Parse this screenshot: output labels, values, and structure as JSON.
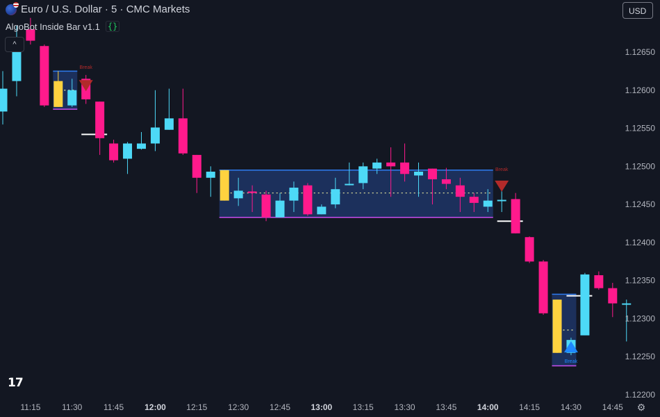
{
  "header": {
    "title": "Euro / U.S. Dollar · 5 · CMC Markets",
    "indicator_name": "AlgoBot Inside Bar v1.1",
    "currency": "USD",
    "logo_text": "17"
  },
  "colors": {
    "background": "#131722",
    "bull": "#4dd9f7",
    "bear": "#ff1a8c",
    "mother": "#ffd23f",
    "box_fill": "#1e3566",
    "box_top": "#2e7bf0",
    "box_bottom": "#c84ef0",
    "break_down": "#b22a2a",
    "break_up": "#1e88ff",
    "level_line": "#ffffff"
  },
  "chart_data": {
    "type": "candlestick",
    "title": "Euro / U.S. Dollar · 5 · CMC Markets",
    "ylim": [
      1.12205,
      1.12705
    ],
    "y_ticks": [
      "1.12650",
      "1.12600",
      "1.12550",
      "1.12500",
      "1.12450",
      "1.12400",
      "1.12350",
      "1.12300",
      "1.12250",
      "1.12200"
    ],
    "x_ticks": [
      {
        "label": "11:15",
        "bar": 2,
        "bold": false
      },
      {
        "label": "11:30",
        "bar": 5,
        "bold": false
      },
      {
        "label": "11:45",
        "bar": 8,
        "bold": false
      },
      {
        "label": "12:00",
        "bar": 11,
        "bold": true
      },
      {
        "label": "12:15",
        "bar": 14,
        "bold": false
      },
      {
        "label": "12:30",
        "bar": 17,
        "bold": false
      },
      {
        "label": "12:45",
        "bar": 20,
        "bold": false
      },
      {
        "label": "13:00",
        "bar": 23,
        "bold": true
      },
      {
        "label": "13:15",
        "bar": 26,
        "bold": false
      },
      {
        "label": "13:30",
        "bar": 29,
        "bold": false
      },
      {
        "label": "13:45",
        "bar": 32,
        "bold": false
      },
      {
        "label": "14:00",
        "bar": 35,
        "bold": true
      },
      {
        "label": "14:15",
        "bar": 38,
        "bold": false
      },
      {
        "label": "14:30",
        "bar": 41,
        "bold": false
      },
      {
        "label": "14:45",
        "bar": 44,
        "bold": false
      }
    ],
    "candles": [
      {
        "o": 1.12572,
        "h": 1.12625,
        "l": 1.12555,
        "c": 1.12602,
        "k": "bull"
      },
      {
        "o": 1.12612,
        "h": 1.12685,
        "l": 1.12592,
        "c": 1.12665,
        "k": "bull"
      },
      {
        "o": 1.1268,
        "h": 1.12695,
        "l": 1.1266,
        "c": 1.12665,
        "k": "bear"
      },
      {
        "o": 1.12658,
        "h": 1.1266,
        "l": 1.12578,
        "c": 1.1258,
        "k": "bear"
      },
      {
        "o": 1.12578,
        "h": 1.12625,
        "l": 1.12578,
        "c": 1.12612,
        "k": "mother"
      },
      {
        "o": 1.1258,
        "h": 1.12615,
        "l": 1.12578,
        "c": 1.126,
        "k": "bull"
      },
      {
        "o": 1.12615,
        "h": 1.1262,
        "l": 1.12582,
        "c": 1.12588,
        "k": "bear"
      },
      {
        "o": 1.12585,
        "h": 1.12585,
        "l": 1.12515,
        "c": 1.12537,
        "k": "bear"
      },
      {
        "o": 1.1253,
        "h": 1.12535,
        "l": 1.12505,
        "c": 1.12508,
        "k": "bear"
      },
      {
        "o": 1.1251,
        "h": 1.12532,
        "l": 1.1249,
        "c": 1.1253,
        "k": "bull"
      },
      {
        "o": 1.12523,
        "h": 1.12545,
        "l": 1.12522,
        "c": 1.1253,
        "k": "bull"
      },
      {
        "o": 1.1253,
        "h": 1.126,
        "l": 1.1252,
        "c": 1.12551,
        "k": "bull"
      },
      {
        "o": 1.12548,
        "h": 1.12602,
        "l": 1.12548,
        "c": 1.12563,
        "k": "bull"
      },
      {
        "o": 1.12563,
        "h": 1.12602,
        "l": 1.12515,
        "c": 1.12517,
        "k": "bear"
      },
      {
        "o": 1.12515,
        "h": 1.12515,
        "l": 1.12465,
        "c": 1.12485,
        "k": "bear"
      },
      {
        "o": 1.12485,
        "h": 1.125,
        "l": 1.1246,
        "c": 1.12493,
        "k": "bull"
      },
      {
        "o": 1.12495,
        "h": 1.12495,
        "l": 1.12455,
        "c": 1.12455,
        "k": "mother"
      },
      {
        "o": 1.12458,
        "h": 1.12485,
        "l": 1.12448,
        "c": 1.12468,
        "k": "bull"
      },
      {
        "o": 1.12467,
        "h": 1.12475,
        "l": 1.1244,
        "c": 1.12465,
        "k": "bear"
      },
      {
        "o": 1.12463,
        "h": 1.12468,
        "l": 1.12428,
        "c": 1.12433,
        "k": "bear"
      },
      {
        "o": 1.12433,
        "h": 1.12465,
        "l": 1.12433,
        "c": 1.12455,
        "k": "bull"
      },
      {
        "o": 1.12455,
        "h": 1.1248,
        "l": 1.1244,
        "c": 1.12472,
        "k": "bull"
      },
      {
        "o": 1.12475,
        "h": 1.12478,
        "l": 1.12435,
        "c": 1.12437,
        "k": "bear"
      },
      {
        "o": 1.12437,
        "h": 1.1245,
        "l": 1.12437,
        "c": 1.12447,
        "k": "bull"
      },
      {
        "o": 1.1245,
        "h": 1.12485,
        "l": 1.12445,
        "c": 1.1247,
        "k": "bull"
      },
      {
        "o": 1.12477,
        "h": 1.12505,
        "l": 1.12475,
        "c": 1.12477,
        "k": "bull"
      },
      {
        "o": 1.12478,
        "h": 1.12505,
        "l": 1.1247,
        "c": 1.125,
        "k": "bull"
      },
      {
        "o": 1.12497,
        "h": 1.1251,
        "l": 1.1249,
        "c": 1.12505,
        "k": "bull"
      },
      {
        "o": 1.12505,
        "h": 1.12525,
        "l": 1.1246,
        "c": 1.125,
        "k": "bear"
      },
      {
        "o": 1.12505,
        "h": 1.1253,
        "l": 1.1248,
        "c": 1.1249,
        "k": "bear"
      },
      {
        "o": 1.12488,
        "h": 1.12505,
        "l": 1.1246,
        "c": 1.12493,
        "k": "bull"
      },
      {
        "o": 1.12497,
        "h": 1.12497,
        "l": 1.1245,
        "c": 1.12483,
        "k": "bear"
      },
      {
        "o": 1.12483,
        "h": 1.12498,
        "l": 1.1247,
        "c": 1.12477,
        "k": "bear"
      },
      {
        "o": 1.12475,
        "h": 1.12485,
        "l": 1.1244,
        "c": 1.1246,
        "k": "bear"
      },
      {
        "o": 1.1246,
        "h": 1.12465,
        "l": 1.1244,
        "c": 1.12452,
        "k": "bear"
      },
      {
        "o": 1.12447,
        "h": 1.1247,
        "l": 1.1244,
        "c": 1.12455,
        "k": "bull"
      },
      {
        "o": 1.12455,
        "h": 1.1247,
        "l": 1.1244,
        "c": 1.12456,
        "k": "bull"
      },
      {
        "o": 1.12457,
        "h": 1.12465,
        "l": 1.12412,
        "c": 1.12412,
        "k": "bear"
      },
      {
        "o": 1.12407,
        "h": 1.12408,
        "l": 1.12373,
        "c": 1.12375,
        "k": "bear"
      },
      {
        "o": 1.12375,
        "h": 1.12377,
        "l": 1.12305,
        "c": 1.12307,
        "k": "bear"
      },
      {
        "o": 1.12325,
        "h": 1.12325,
        "l": 1.12255,
        "c": 1.12255,
        "k": "mother"
      },
      {
        "o": 1.12255,
        "h": 1.12275,
        "l": 1.12252,
        "c": 1.12272,
        "k": "bull"
      },
      {
        "o": 1.12278,
        "h": 1.1236,
        "l": 1.12278,
        "c": 1.12358,
        "k": "bull"
      },
      {
        "o": 1.12357,
        "h": 1.12362,
        "l": 1.12338,
        "c": 1.1234,
        "k": "bear"
      },
      {
        "o": 1.1234,
        "h": 1.12347,
        "l": 1.12302,
        "c": 1.1232,
        "k": "bear"
      },
      {
        "o": 1.1232,
        "h": 1.12325,
        "l": 1.1227,
        "c": 1.1232,
        "k": "bull"
      }
    ],
    "ranges": [
      {
        "from": 4,
        "to": 5,
        "high": 1.12625,
        "low": 1.12575,
        "mid": 1.126
      },
      {
        "from": 16,
        "to": 35,
        "high": 1.12495,
        "low": 1.12433,
        "mid": 1.12465
      },
      {
        "from": 40,
        "to": 41,
        "high": 1.12332,
        "low": 1.12238,
        "mid": 1.12285
      }
    ],
    "breaks": [
      {
        "bar": 6,
        "price": 1.12606,
        "dir": "down",
        "label": "Break",
        "label_price": 1.12628
      },
      {
        "bar": 36,
        "price": 1.12474,
        "dir": "down",
        "label": "Break",
        "label_price": 1.12494
      },
      {
        "bar": 41,
        "price": 1.12263,
        "dir": "up",
        "label": "Break",
        "label_price": 1.12242
      }
    ],
    "levels": [
      {
        "from": 6,
        "to": 7,
        "price": 1.12542
      },
      {
        "from": 36,
        "to": 37,
        "price": 1.12428
      },
      {
        "from": 41,
        "to": 42,
        "price": 1.1233
      }
    ]
  }
}
